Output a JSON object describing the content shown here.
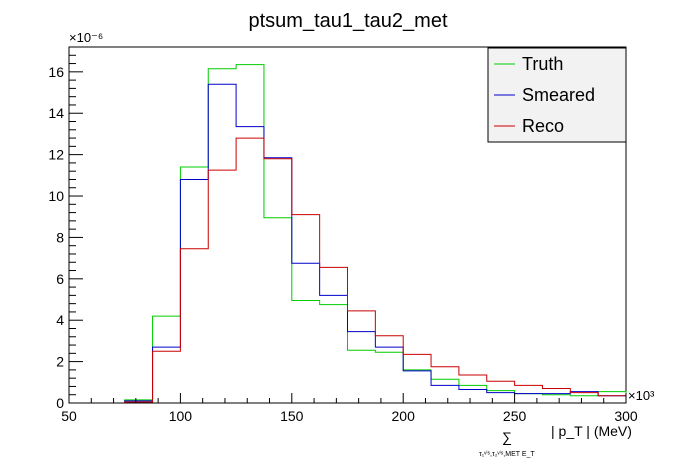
{
  "chart_data": {
    "type": "line",
    "step": true,
    "title": "ptsum_tau1_tau2_met",
    "xlim": [
      50,
      300
    ],
    "ylim": [
      0,
      17.2
    ],
    "x_multiplier": "×10³",
    "y_multiplier": "×10⁻⁶",
    "x_ticks": [
      50,
      100,
      150,
      200,
      250,
      300
    ],
    "y_ticks": [
      0,
      2,
      4,
      6,
      8,
      10,
      12,
      14,
      16
    ],
    "xlabel": {
      "sum_symbol": "∑",
      "sum_subscript": "τ₁ᵛⁱˢ,τ₂ᵛⁱˢ,MET E_T",
      "body": "| p_T | (MeV)"
    },
    "bin_edges": [
      75,
      87.5,
      100,
      112.5,
      125,
      137.5,
      150,
      162.5,
      175,
      187.5,
      200,
      212.5,
      225,
      237.5,
      250,
      262.5,
      275,
      287.5,
      300
    ],
    "series": [
      {
        "name": "Truth",
        "color": "#00cc00",
        "values": [
          0.15,
          4.2,
          11.4,
          16.15,
          16.35,
          8.95,
          4.95,
          4.75,
          2.55,
          2.45,
          1.6,
          1.15,
          0.85,
          0.6,
          0.45,
          0.4,
          0.35,
          0.55
        ]
      },
      {
        "name": "Smeared",
        "color": "#0000cc",
        "values": [
          0.1,
          2.7,
          10.8,
          15.4,
          13.35,
          11.85,
          6.75,
          5.2,
          3.45,
          2.7,
          1.55,
          0.85,
          0.65,
          0.5,
          0.45,
          0.45,
          0.55,
          0.35
        ]
      },
      {
        "name": "Reco",
        "color": "#cc0000",
        "values": [
          0.05,
          2.5,
          7.45,
          11.25,
          12.8,
          11.8,
          9.1,
          6.55,
          4.45,
          3.25,
          2.35,
          1.75,
          1.35,
          1.05,
          0.85,
          0.7,
          0.5,
          0.35
        ]
      }
    ],
    "legend_position": "top-right"
  }
}
